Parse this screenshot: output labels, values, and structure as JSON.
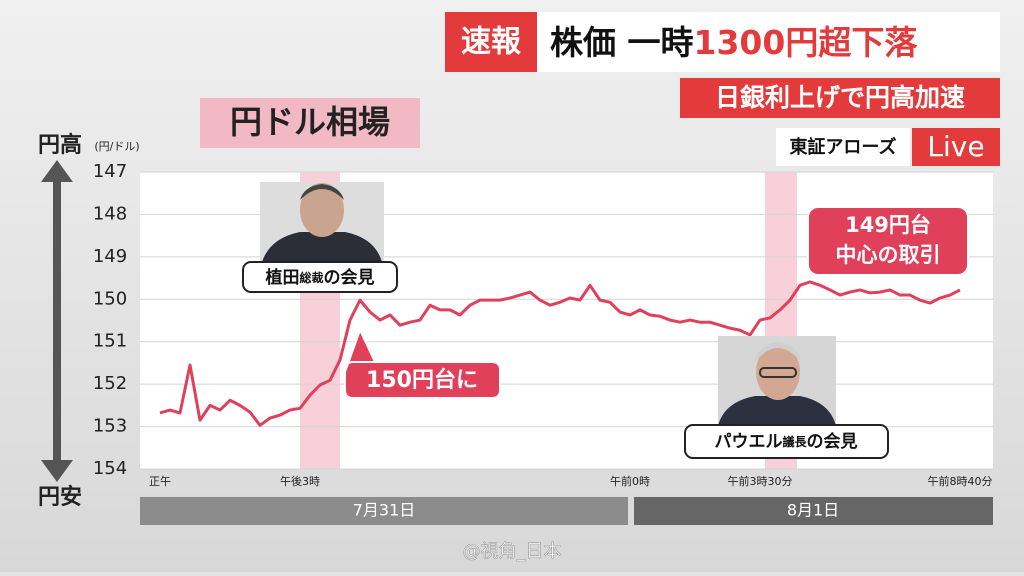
{
  "breaking": "速報",
  "headline": {
    "lead": "株価 一時",
    "highlight": "1300円超下落"
  },
  "subheadline": "日銀利上げで円高加速",
  "source": "東証アローズ",
  "live": "Live",
  "watermark": "@視角_日本",
  "chart_data": {
    "type": "line",
    "title": "円ドル相場",
    "y_top_label": "円高",
    "y_unit": "(円/ドル)",
    "y_bottom_label": "円安",
    "y_inverted": true,
    "ylim": [
      147,
      154
    ],
    "yticks": [
      147,
      148,
      149,
      150,
      151,
      152,
      153,
      154
    ],
    "grid": true,
    "categories": [
      "正午",
      null,
      null,
      null,
      null,
      null,
      null,
      null,
      null,
      null,
      null,
      null,
      null,
      null,
      "午後3時",
      null,
      null,
      null,
      null,
      null,
      null,
      null,
      null,
      null,
      null,
      null,
      null,
      null,
      null,
      null,
      null,
      null,
      null,
      null,
      null,
      null,
      null,
      null,
      null,
      null,
      null,
      null,
      null,
      null,
      null,
      null,
      null,
      "午前0時",
      null,
      null,
      null,
      null,
      null,
      null,
      null,
      null,
      null,
      null,
      null,
      null,
      "午前3時30分",
      null,
      null,
      null,
      null,
      null,
      null,
      null,
      null,
      null,
      null,
      null,
      null,
      null,
      null,
      null,
      null,
      null,
      null,
      null,
      "午前8時40分"
    ],
    "series": [
      {
        "color": "#e0405a",
        "values": [
          152.68,
          152.61,
          152.68,
          151.55,
          152.85,
          152.5,
          152.61,
          152.38,
          152.5,
          152.66,
          152.97,
          152.8,
          152.73,
          152.61,
          152.57,
          152.26,
          152.02,
          151.91,
          151.43,
          150.49,
          150.02,
          150.3,
          150.49,
          150.37,
          150.61,
          150.54,
          150.49,
          150.14,
          150.25,
          150.25,
          150.37,
          150.14,
          150.02,
          150.02,
          150.02,
          149.97,
          149.9,
          149.83,
          150.02,
          150.14,
          150.07,
          149.97,
          150.02,
          149.67,
          150.02,
          150.07,
          150.3,
          150.37,
          150.25,
          150.37,
          150.4,
          150.49,
          150.54,
          150.49,
          150.54,
          150.54,
          150.61,
          150.68,
          150.73,
          150.84,
          150.49,
          150.44,
          150.25,
          150.02,
          149.67,
          149.59,
          149.67,
          149.78,
          149.9,
          149.83,
          149.78,
          149.85,
          149.83,
          149.78,
          149.9,
          149.9,
          150.02,
          150.09,
          149.97,
          149.9,
          149.78
        ]
      }
    ],
    "date_labels": [
      "7月31日",
      "8月1日"
    ],
    "annotations": {
      "ueda": [
        "植田",
        "総裁",
        "の会見"
      ],
      "level150": "150円台に",
      "level149": [
        "149円台",
        "中心の取引"
      ],
      "powell": [
        "パウエル",
        "議長",
        "の会見"
      ]
    }
  }
}
